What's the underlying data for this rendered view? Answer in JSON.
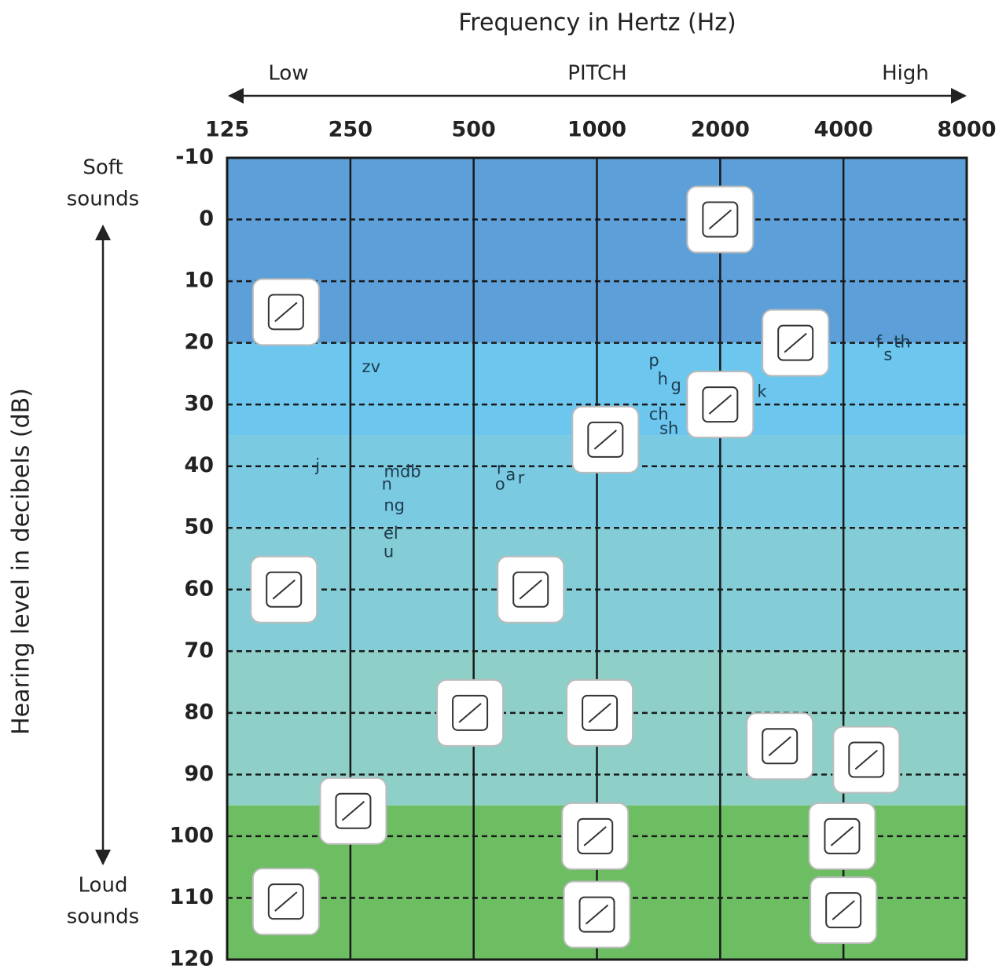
{
  "chart_data": {
    "type": "scatter",
    "title": "Frequency in Hertz (Hz)",
    "pitch_labels": [
      "Low",
      "PITCH",
      "High"
    ],
    "ylabel": "Hearing level in decibels (dB)",
    "top_label": [
      "Soft",
      "sounds"
    ],
    "bottom_label": [
      "Loud",
      "sounds"
    ],
    "xscale": "log",
    "xlim": [
      125,
      8000
    ],
    "xticks": [
      125,
      250,
      500,
      1000,
      2000,
      4000,
      8000
    ],
    "ylim": [
      -10,
      120
    ],
    "yticks": [
      -10,
      0,
      10,
      20,
      30,
      40,
      50,
      60,
      70,
      80,
      90,
      100,
      110,
      120
    ],
    "y_inverted": true,
    "grid": true,
    "bands": [
      {
        "from": -10,
        "to": 20,
        "color": "#5d9fd8"
      },
      {
        "from": 20,
        "to": 35,
        "color": "#6cc6ee"
      },
      {
        "from": 35,
        "to": 50,
        "color": "#7acbe2"
      },
      {
        "from": 50,
        "to": 70,
        "color": "#84cdd7"
      },
      {
        "from": 70,
        "to": 95,
        "color": "#8ecfc8"
      },
      {
        "from": 95,
        "to": 120,
        "color": "#6dbd63"
      }
    ],
    "speech_sounds": [
      {
        "text": "zv",
        "x": 281,
        "y": 24
      },
      {
        "text": "j",
        "x": 208,
        "y": 40
      },
      {
        "text": "mdb",
        "x": 335,
        "y": 41
      },
      {
        "text": "n",
        "x": 307,
        "y": 43
      },
      {
        "text": "ng",
        "x": 320,
        "y": 46.5
      },
      {
        "text": "el",
        "x": 314,
        "y": 51
      },
      {
        "text": "u",
        "x": 310,
        "y": 54
      },
      {
        "text": "o",
        "x": 580,
        "y": 43
      },
      {
        "text": "r",
        "x": 580,
        "y": 40.5
      },
      {
        "text": "a",
        "x": 616,
        "y": 41.5
      },
      {
        "text": "r",
        "x": 653,
        "y": 42
      },
      {
        "text": "p",
        "x": 1378,
        "y": 23
      },
      {
        "text": "h",
        "x": 1448,
        "y": 26
      },
      {
        "text": "g",
        "x": 1560,
        "y": 27
      },
      {
        "text": "ch",
        "x": 1416,
        "y": 31.7
      },
      {
        "text": "sh",
        "x": 1500,
        "y": 34
      },
      {
        "text": "k",
        "x": 2530,
        "y": 28
      },
      {
        "text": "f",
        "x": 4880,
        "y": 20
      },
      {
        "text": "s",
        "x": 5140,
        "y": 22
      },
      {
        "text": "th",
        "x": 5570,
        "y": 20
      }
    ],
    "icons": [
      {
        "x": 2000,
        "y": 0
      },
      {
        "x": 174,
        "y": 15
      },
      {
        "x": 3055,
        "y": 20
      },
      {
        "x": 2000,
        "y": 30
      },
      {
        "x": 1049,
        "y": 35.7
      },
      {
        "x": 172,
        "y": 60
      },
      {
        "x": 689,
        "y": 60
      },
      {
        "x": 490,
        "y": 80
      },
      {
        "x": 1016,
        "y": 80
      },
      {
        "x": 2797,
        "y": 85.4
      },
      {
        "x": 4550,
        "y": 87.6
      },
      {
        "x": 254,
        "y": 95.9
      },
      {
        "x": 990,
        "y": 100
      },
      {
        "x": 3970,
        "y": 100
      },
      {
        "x": 174,
        "y": 110.6
      },
      {
        "x": 1000,
        "y": 112.7
      },
      {
        "x": 4000,
        "y": 112
      }
    ]
  }
}
